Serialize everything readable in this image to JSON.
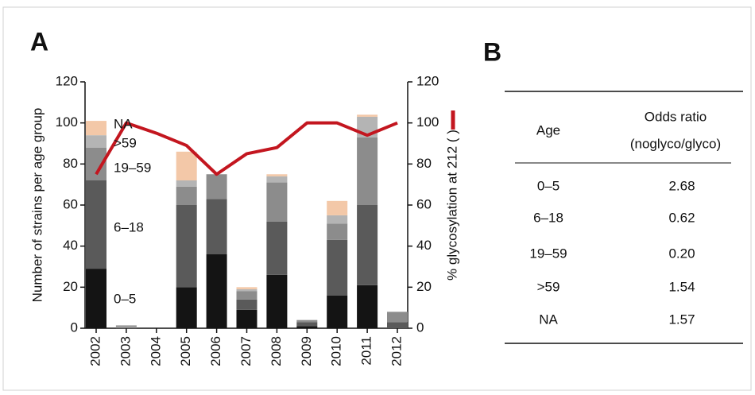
{
  "panel_a": "A",
  "panel_b": "B",
  "chart_data": {
    "type": "bar",
    "ylabel": "Number of strains  per age group",
    "y2label": "% glycosylation at 212 (   )",
    "categories": [
      "2002",
      "2003",
      "2004",
      "2005",
      "2006",
      "2007",
      "2008",
      "2009",
      "2010",
      "2011",
      "2012"
    ],
    "series": [
      {
        "name": "0–5",
        "color": "#141414",
        "values": [
          29,
          0,
          0,
          20,
          36,
          9,
          26,
          1,
          16,
          21,
          0
        ]
      },
      {
        "name": "6–18",
        "color": "#5a5a5a",
        "values": [
          43,
          0,
          0,
          40,
          27,
          5,
          26,
          2,
          27,
          39,
          3
        ]
      },
      {
        "name": "19–59",
        "color": "#8c8c8c",
        "values": [
          16,
          1,
          0,
          9,
          12,
          4,
          19,
          1,
          8,
          33,
          5
        ]
      },
      {
        "name": ">59",
        "color": "#b4b4b4",
        "values": [
          6,
          0.5,
          0,
          3,
          0,
          1,
          3,
          0,
          4,
          10,
          0
        ]
      },
      {
        "name": "NA",
        "color": "#f3c8a8",
        "values": [
          7,
          0,
          0,
          14,
          0,
          1,
          1,
          0,
          7,
          1,
          0
        ]
      },
      {
        "type": "line",
        "axis": "y2",
        "color": "#c3161f",
        "values": [
          75,
          100,
          95,
          89,
          75,
          85,
          88,
          100,
          100,
          94,
          100
        ]
      }
    ],
    "ylim": [
      0,
      120
    ],
    "yticks": [
      0,
      20,
      40,
      60,
      80,
      100,
      120
    ],
    "y2lim": [
      0,
      120
    ],
    "y2ticks": [
      0,
      20,
      40,
      60,
      80,
      100,
      120
    ]
  },
  "table": {
    "header": [
      "Age",
      "Odds ratio",
      "(noglyco/glyco)"
    ],
    "rows": [
      [
        "0–5",
        "2.68"
      ],
      [
        "6–18",
        "0.62"
      ],
      [
        "19–59",
        "0.20"
      ],
      [
        ">59",
        "1.54"
      ],
      [
        "NA",
        "1.57"
      ]
    ]
  }
}
